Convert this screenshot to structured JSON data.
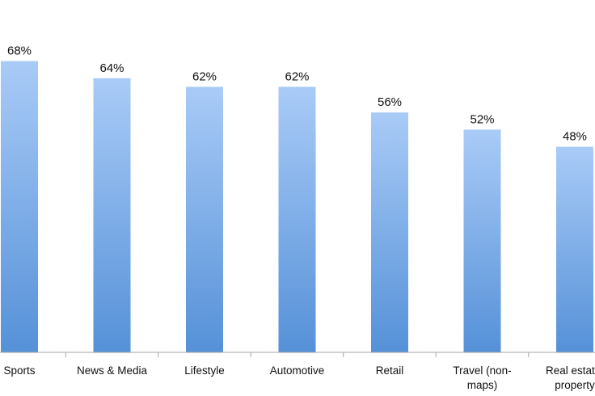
{
  "chart_data": {
    "type": "bar",
    "categories": [
      "Sports",
      "News & Media",
      "Lifestyle",
      "Automotive",
      "Retail",
      "Travel (non-\nmaps)",
      "Real estate/\nproperty"
    ],
    "values": [
      68,
      64,
      62,
      62,
      56,
      52,
      48
    ],
    "value_labels": [
      "68%",
      "64%",
      "62%",
      "62%",
      "56%",
      "52%",
      "48%"
    ],
    "ylim": [
      0,
      75
    ],
    "grid": false,
    "legend": "none",
    "colors": {
      "bar_top": "#a9cbf7",
      "bar_bottom": "#5591d8",
      "axis": "#a6a6a6"
    }
  }
}
